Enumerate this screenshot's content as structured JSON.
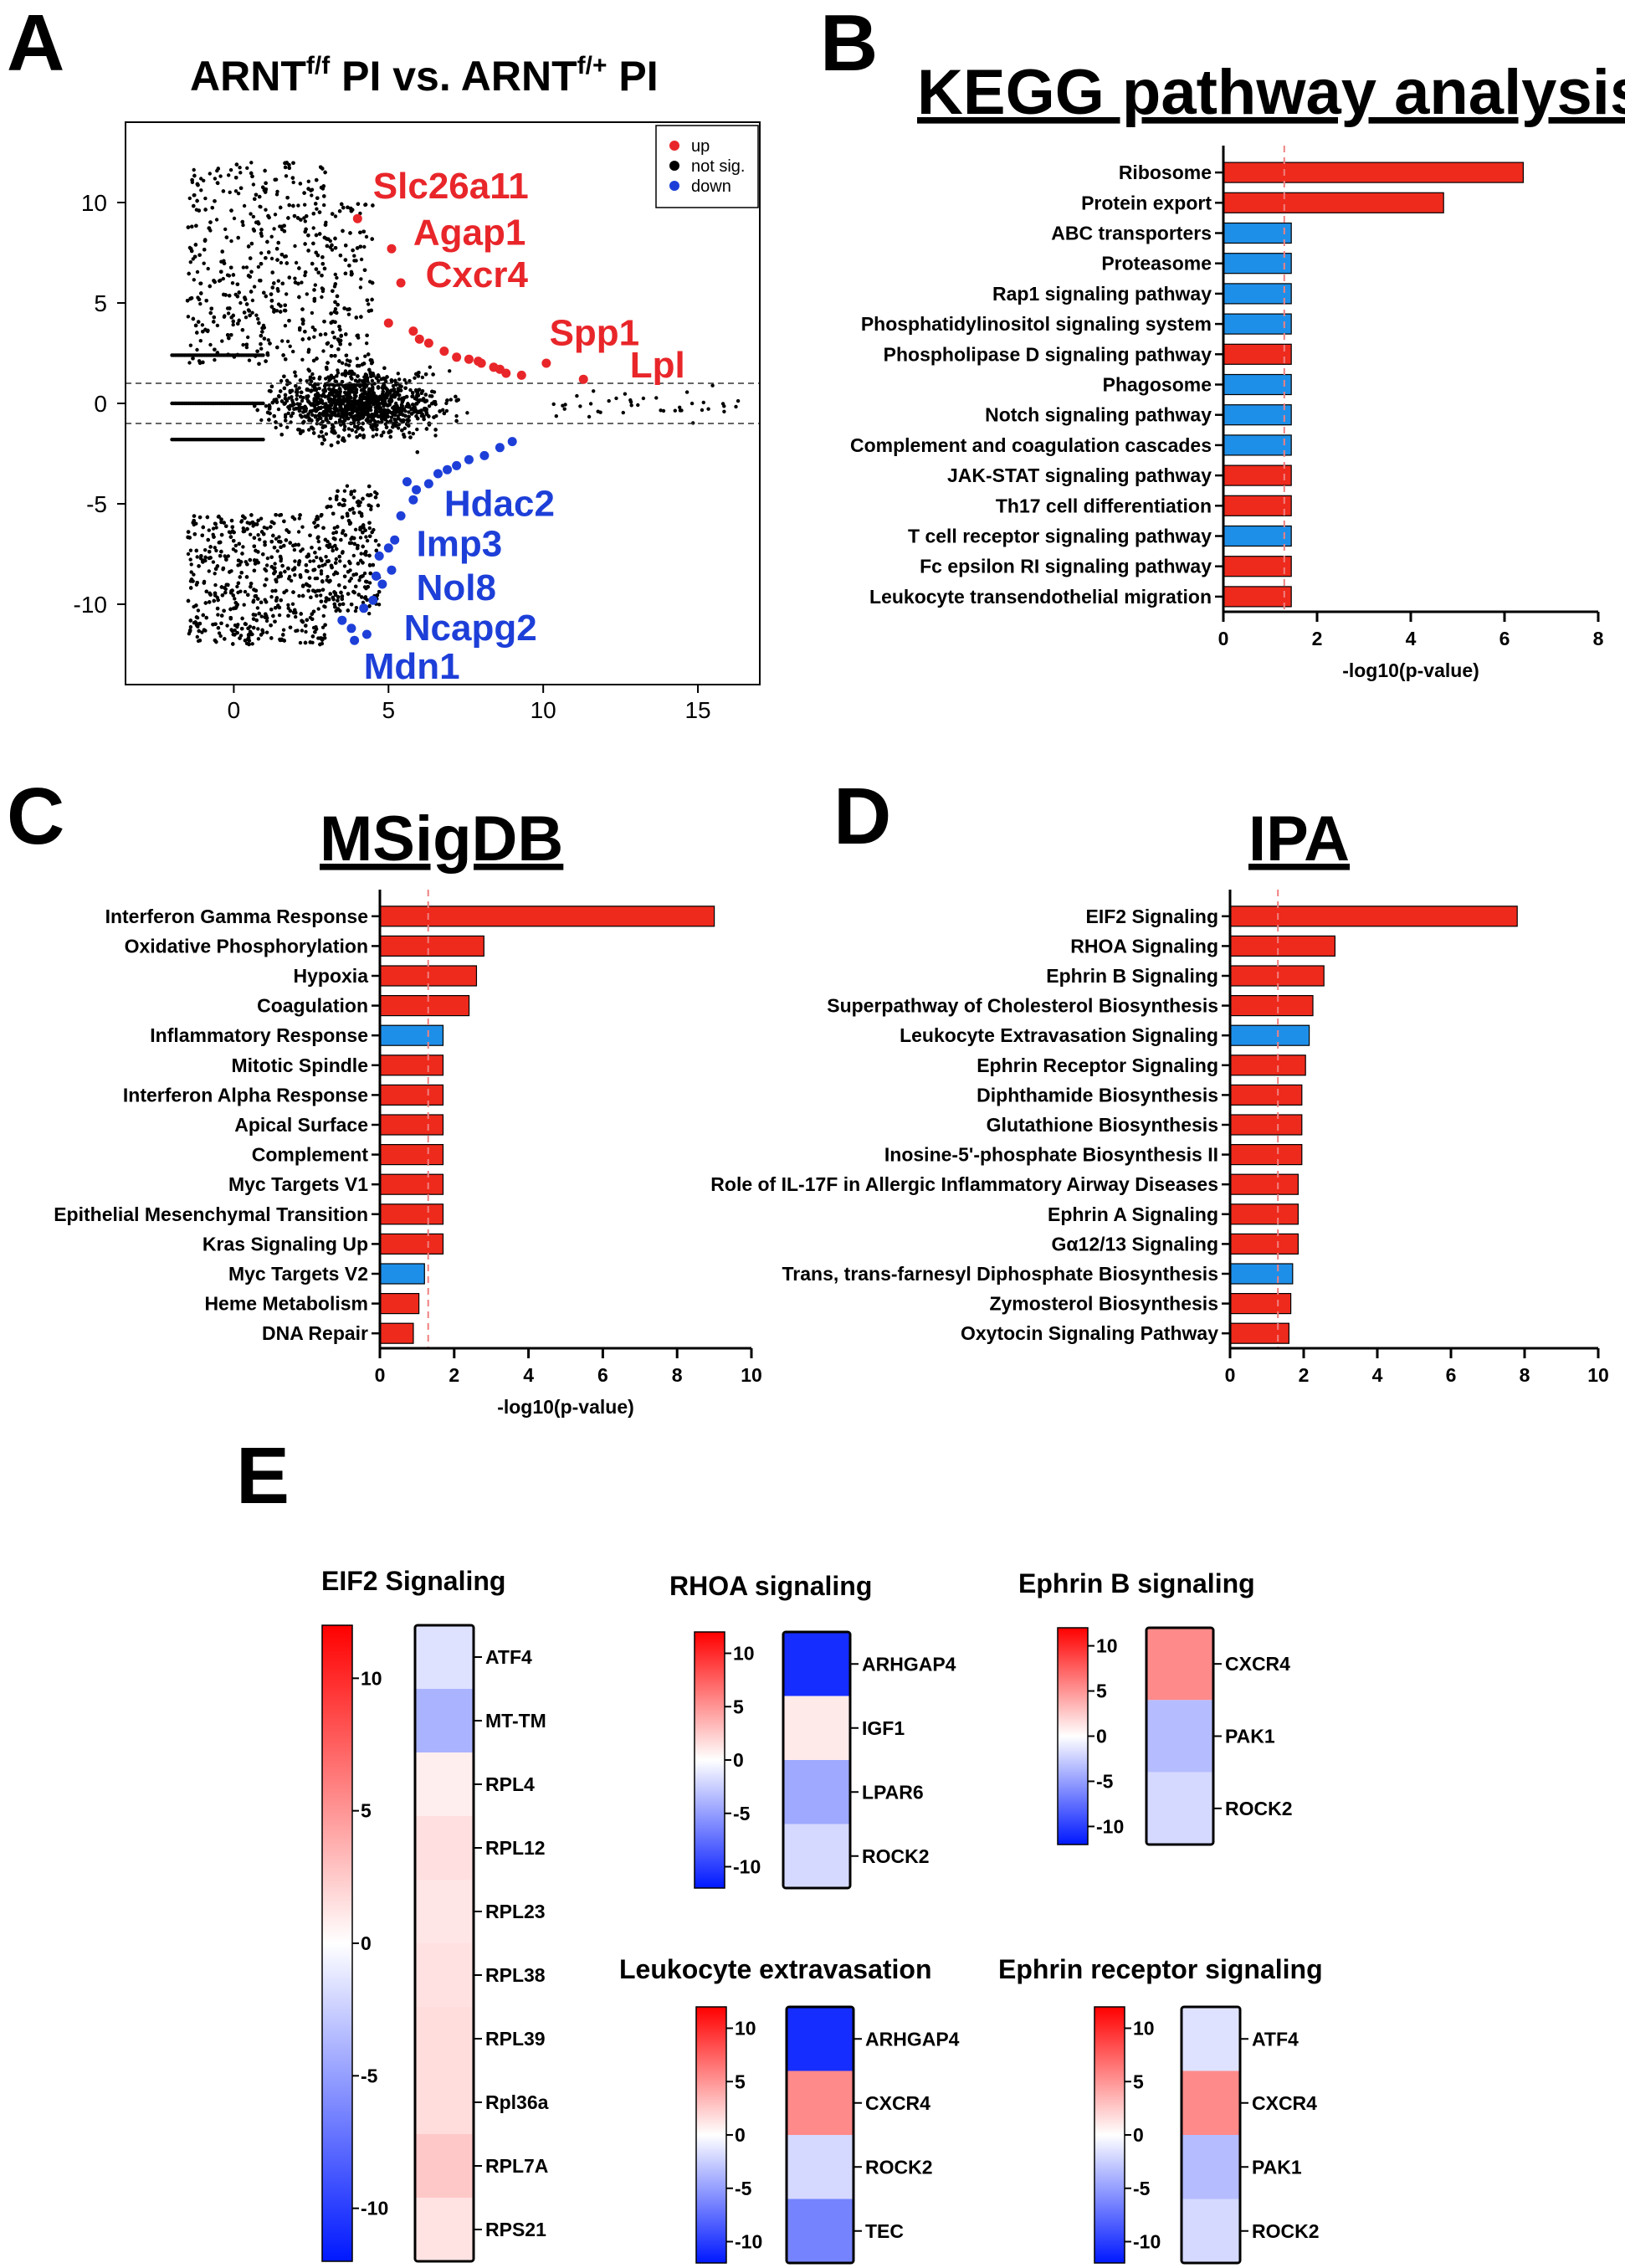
{
  "colors": {
    "up": "#ee2a1c",
    "down": "#1e8fe8",
    "volcano_up": "#e8262a",
    "volcano_down": "#1d3fd8",
    "neutral": "#000000",
    "threshold": "#f08080"
  },
  "panels": {
    "A": {
      "letter": "A",
      "title_part1": "ARNT",
      "title_sup1": "f/f",
      "title_part2": " PI vs. ARNT",
      "title_sup2": "f/+",
      "title_part3": " PI"
    },
    "B": {
      "letter": "B",
      "title": "KEGG pathway analysis"
    },
    "C": {
      "letter": "C",
      "title": "MSigDB"
    },
    "D": {
      "letter": "D",
      "title": "IPA"
    },
    "E": {
      "letter": "E"
    }
  },
  "chart_data": [
    {
      "id": "A",
      "type": "scatter",
      "title": "ARNTf/f PI vs. ARNTf/+ PI",
      "xlim": [
        -3.5,
        17
      ],
      "ylim": [
        -14,
        14
      ],
      "xticks": [
        0,
        5,
        10,
        15
      ],
      "yticks": [
        -10,
        -5,
        0,
        5,
        10
      ],
      "hlines": [
        1,
        -1
      ],
      "legend": {
        "position": "top-right",
        "entries": [
          {
            "label": "up",
            "key": "up"
          },
          {
            "label": "not sig.",
            "key": "neutral"
          },
          {
            "label": "down",
            "key": "down"
          }
        ]
      },
      "cloud_points": 6000,
      "up_points": [
        [
          4,
          9.2
        ],
        [
          5.1,
          7.7
        ],
        [
          5.4,
          6
        ],
        [
          5,
          4
        ],
        [
          5.8,
          3.6
        ],
        [
          6.3,
          3
        ],
        [
          6.8,
          2.6
        ],
        [
          7.2,
          2.3
        ],
        [
          7.6,
          2.2
        ],
        [
          8,
          2
        ],
        [
          8.4,
          1.8
        ],
        [
          8.8,
          1.5
        ],
        [
          9.3,
          1.4
        ],
        [
          10.1,
          2
        ],
        [
          11.3,
          1.2
        ],
        [
          6,
          3.2
        ],
        [
          7.9,
          2.1
        ],
        [
          8.6,
          1.7
        ]
      ],
      "down_points": [
        [
          3.5,
          -10.8
        ],
        [
          3.9,
          -11.8
        ],
        [
          4.3,
          -11.5
        ],
        [
          4.5,
          -9.8
        ],
        [
          4.8,
          -9
        ],
        [
          5.1,
          -8.3
        ],
        [
          4.7,
          -7.6
        ],
        [
          5.2,
          -6.8
        ],
        [
          5.4,
          -5.6
        ],
        [
          5.8,
          -4.8
        ],
        [
          6.3,
          -4
        ],
        [
          6.6,
          -3.5
        ],
        [
          7.2,
          -3.1
        ],
        [
          7.6,
          -2.8
        ],
        [
          8.1,
          -2.6
        ],
        [
          8.6,
          -2.2
        ],
        [
          9,
          -1.9
        ],
        [
          5.6,
          -3.9
        ],
        [
          4.2,
          -10.2
        ],
        [
          5,
          -7.2
        ],
        [
          6.9,
          -3.3
        ],
        [
          4.6,
          -8.6
        ],
        [
          3.8,
          -11.2
        ],
        [
          5.9,
          -4.3
        ]
      ],
      "labels_up": [
        {
          "text": "Slc26a11",
          "x": 4.5,
          "y": 10.2
        },
        {
          "text": "Agap1",
          "x": 5.8,
          "y": 7.9
        },
        {
          "text": "Cxcr4",
          "x": 6.2,
          "y": 5.8
        },
        {
          "text": "Spp1",
          "x": 10.2,
          "y": 2.9
        },
        {
          "text": "Lpl",
          "x": 12.8,
          "y": 1.3
        }
      ],
      "labels_down": [
        {
          "text": "Hdac2",
          "x": 6.8,
          "y": -5.6
        },
        {
          "text": "Imp3",
          "x": 5.9,
          "y": -7.6
        },
        {
          "text": "Nol8",
          "x": 5.9,
          "y": -9.8
        },
        {
          "text": "Ncapg2",
          "x": 5.5,
          "y": -11.8
        },
        {
          "text": "Mdn1",
          "x": 4.2,
          "y": -13.7
        }
      ]
    },
    {
      "id": "B",
      "type": "bar",
      "orientation": "horizontal",
      "title": "KEGG pathway analysis",
      "xlabel": "-log10(p-value)",
      "xlim": [
        0,
        8
      ],
      "xticks": [
        0,
        2,
        4,
        6,
        8
      ],
      "threshold": 1.3,
      "categories": [
        "Ribosome",
        "Protein export",
        "ABC transporters",
        "Proteasome",
        "Rap1 signaling pathway",
        "Phosphatidylinositol signaling system",
        "Phospholipase D signaling pathway",
        "Phagosome",
        "Notch signaling pathway",
        "Complement and coagulation cascades",
        "JAK-STAT signaling pathway",
        "Th17 cell differentiation",
        "T cell receptor signaling pathway",
        "Fc epsilon RI signaling pathway",
        "Leukocyte transendothelial migration"
      ],
      "values": [
        6.4,
        4.7,
        1.45,
        1.45,
        1.45,
        1.45,
        1.45,
        1.45,
        1.45,
        1.45,
        1.45,
        1.45,
        1.45,
        1.45,
        1.45
      ],
      "directions": [
        "up",
        "up",
        "down",
        "down",
        "down",
        "down",
        "up",
        "down",
        "down",
        "down",
        "up",
        "up",
        "down",
        "up",
        "up"
      ]
    },
    {
      "id": "C",
      "type": "bar",
      "orientation": "horizontal",
      "title": "MSigDB",
      "xlabel": "-log10(p-value)",
      "xlim": [
        0,
        10
      ],
      "xticks": [
        0,
        2,
        4,
        6,
        8,
        10
      ],
      "threshold": 1.3,
      "categories": [
        "Interferon Gamma Response",
        "Oxidative Phosphorylation",
        "Hypoxia",
        "Coagulation",
        "Inflammatory Response",
        "Mitotic Spindle",
        "Interferon Alpha Response",
        "Apical Surface",
        "Complement",
        "Myc Targets V1",
        "Epithelial Mesenchymal Transition",
        "Kras Signaling Up",
        "Myc Targets V2",
        "Heme Metabolism",
        "DNA Repair"
      ],
      "values": [
        9.0,
        2.8,
        2.6,
        2.4,
        1.7,
        1.7,
        1.7,
        1.7,
        1.7,
        1.7,
        1.7,
        1.7,
        1.2,
        1.05,
        0.9
      ],
      "directions": [
        "up",
        "up",
        "up",
        "up",
        "down",
        "up",
        "up",
        "up",
        "up",
        "up",
        "up",
        "up",
        "down",
        "up",
        "up"
      ]
    },
    {
      "id": "D",
      "type": "bar",
      "orientation": "horizontal",
      "title": "IPA",
      "xlabel": "",
      "xlim": [
        0,
        10
      ],
      "xticks": [
        0,
        2,
        4,
        6,
        8,
        10
      ],
      "threshold": 1.3,
      "categories": [
        "EIF2 Signaling",
        "RHOA Signaling",
        "Ephrin B Signaling",
        "Superpathway of Cholesterol Biosynthesis",
        "Leukocyte Extravasation Signaling",
        "Ephrin Receptor Signaling",
        "Diphthamide Biosynthesis",
        "Glutathione Biosynthesis",
        "Inosine-5'-phosphate Biosynthesis II",
        "Role of IL-17F in Allergic Inflammatory Airway Diseases",
        "Ephrin A Signaling",
        "Gα12/13 Signaling",
        "Trans, trans-farnesyl Diphosphate Biosynthesis",
        "Zymosterol Biosynthesis",
        "Oxytocin Signaling Pathway"
      ],
      "values": [
        7.8,
        2.85,
        2.55,
        2.25,
        2.15,
        2.05,
        1.95,
        1.95,
        1.95,
        1.85,
        1.85,
        1.85,
        1.7,
        1.65,
        1.6
      ],
      "directions": [
        "up",
        "up",
        "up",
        "up",
        "down",
        "up",
        "up",
        "up",
        "up",
        "up",
        "up",
        "up",
        "down",
        "up",
        "up"
      ]
    },
    {
      "id": "E",
      "type": "heatmap",
      "color_range": [
        -12,
        12
      ],
      "colorbar_ticks": [
        10,
        5,
        0,
        -5,
        -10
      ],
      "maps": [
        {
          "title": "EIF2 Signaling",
          "genes": [
            "ATF4",
            "MT-TM",
            "RPL4",
            "RPL12",
            "RPL23",
            "RPL38",
            "RPL39",
            "Rpl36a",
            "RPL7A",
            "RPS21"
          ],
          "values": [
            -1.5,
            -4,
            0.8,
            1.5,
            1.2,
            1.4,
            1.6,
            1.6,
            2.6,
            1.3
          ]
        },
        {
          "title": "RHOA signaling",
          "genes": [
            "ARHGAP4",
            "IGF1",
            "LPAR6",
            "ROCK2"
          ],
          "values": [
            -11,
            1,
            -4.5,
            -2
          ]
        },
        {
          "title": "Ephrin B signaling",
          "genes": [
            "CXCR4",
            "PAK1",
            "ROCK2"
          ],
          "values": [
            5.5,
            -3.5,
            -2
          ]
        },
        {
          "title": "Leukocyte extravasation",
          "genes": [
            "ARHGAP4",
            "CXCR4",
            "ROCK2",
            "TEC"
          ],
          "values": [
            -11,
            5.5,
            -2,
            -6.5
          ]
        },
        {
          "title": "Ephrin receptor signaling",
          "genes": [
            "ATF4",
            "CXCR4",
            "PAK1",
            "ROCK2"
          ],
          "values": [
            -1.5,
            5.5,
            -3.5,
            -2
          ]
        }
      ]
    }
  ]
}
